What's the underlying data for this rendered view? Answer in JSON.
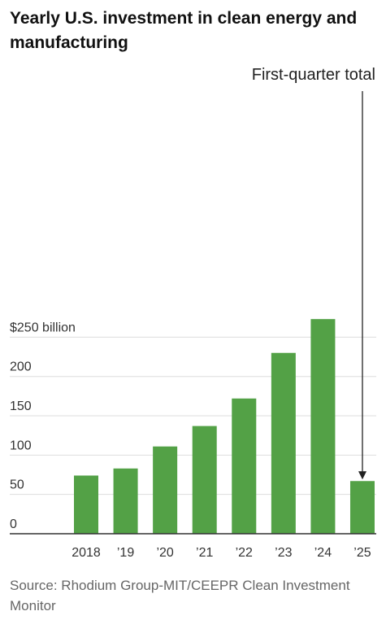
{
  "title": "Yearly U.S. investment in clean energy and manufacturing",
  "source": "Source: Rhodium Group-MIT/CEEPR Clean Investment Monitor",
  "colors": {
    "bar": "#53a146",
    "grid": "#dddddd",
    "axis": "#333333",
    "text": "#333333"
  },
  "chart_data": {
    "type": "bar",
    "title": "Yearly U.S. investment in clean energy and manufacturing",
    "categories": [
      "2018",
      "’19",
      "’20",
      "’21",
      "’22",
      "’23",
      "’24",
      "’25"
    ],
    "values": [
      74,
      83,
      111,
      137,
      172,
      230,
      273,
      67
    ],
    "ylim": [
      0,
      250
    ],
    "yticks": [
      {
        "value": 0,
        "label": "0"
      },
      {
        "value": 50,
        "label": "50"
      },
      {
        "value": 100,
        "label": "100"
      },
      {
        "value": 150,
        "label": "150"
      },
      {
        "value": 200,
        "label": "200"
      },
      {
        "value": 250,
        "label": "$250 billion"
      }
    ],
    "grid": true,
    "annotation": {
      "text": "First-quarter total",
      "category": "’25"
    }
  }
}
